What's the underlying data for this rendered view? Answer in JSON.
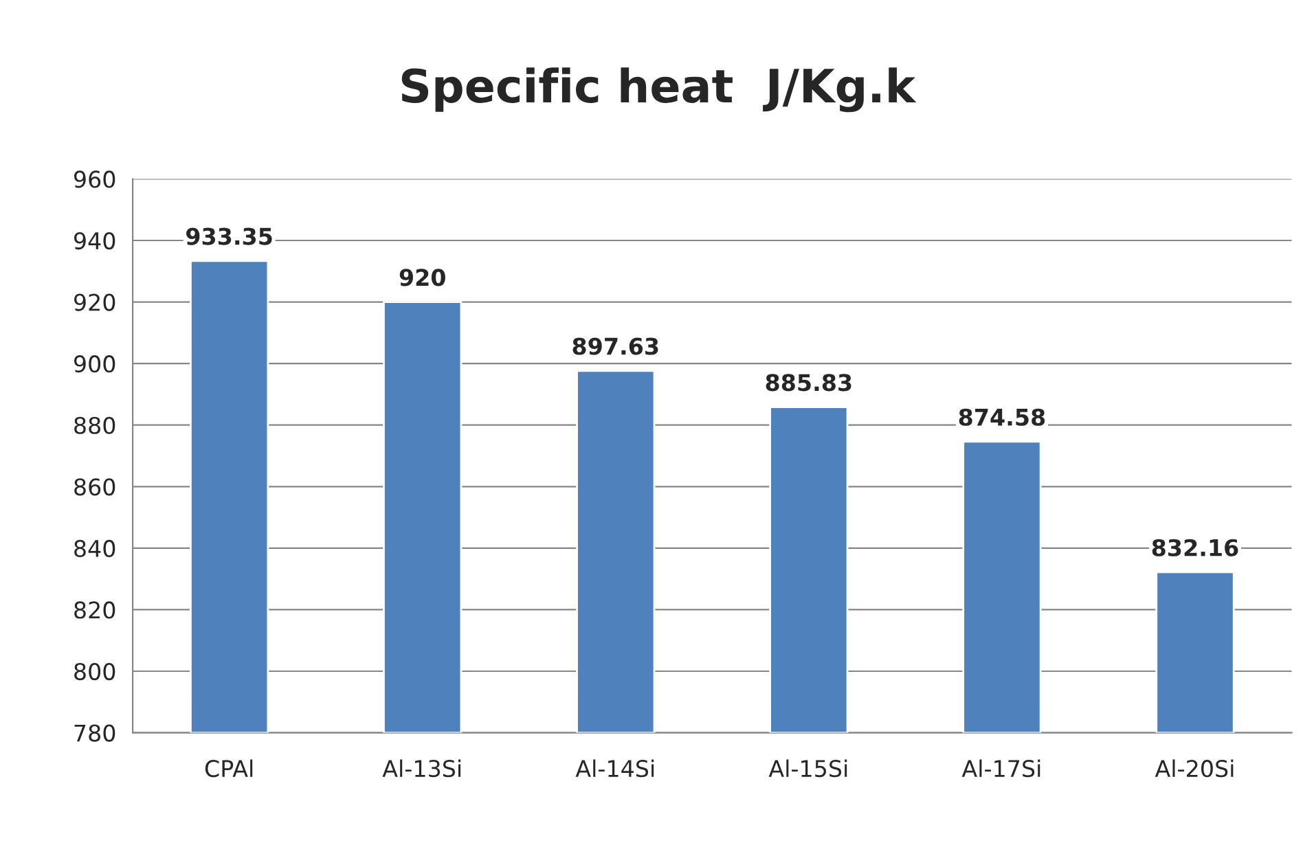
{
  "chart_data": {
    "type": "bar",
    "title": "Specific heat  J/Kg.k",
    "categories": [
      "CPAl",
      "Al-13Si",
      "Al-14Si",
      "Al-15Si",
      "Al-17Si",
      "Al-20Si"
    ],
    "values": [
      933.35,
      920,
      897.63,
      885.83,
      874.58,
      832.16
    ],
    "color": "#4f81bd",
    "ylim": [
      780,
      960
    ],
    "yticks": [
      780,
      800,
      820,
      840,
      860,
      880,
      900,
      920,
      940,
      960
    ],
    "grid": "y",
    "data_labels": true,
    "legend": false
  }
}
